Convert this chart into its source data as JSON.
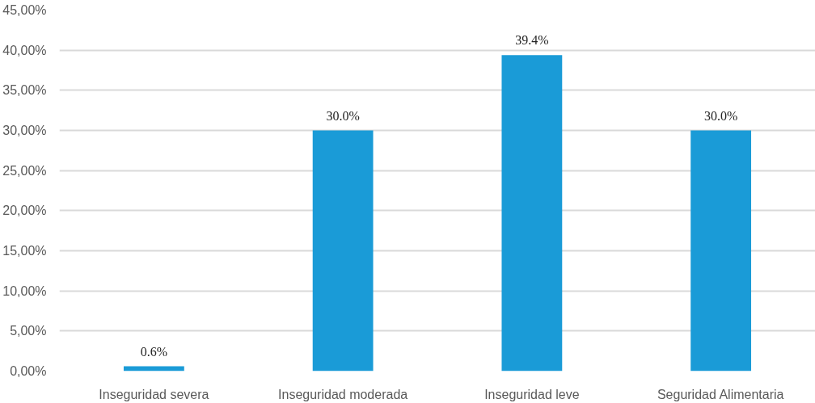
{
  "chart_data": {
    "type": "bar",
    "categories": [
      "Inseguridad severa",
      "Inseguridad moderada",
      "Inseguridad leve",
      "Seguridad Alimentaria"
    ],
    "values": [
      0.6,
      30.0,
      39.4,
      30.0
    ],
    "value_labels": [
      "0.6%",
      "30.0%",
      "39.4%",
      "30.0%"
    ],
    "color": "#1a9bd7",
    "ylim": [
      0,
      45
    ],
    "yticks": [
      {
        "value": 0,
        "label": "0,00%"
      },
      {
        "value": 5,
        "label": "5,00%"
      },
      {
        "value": 10,
        "label": "10,00%"
      },
      {
        "value": 15,
        "label": "15,00%"
      },
      {
        "value": 20,
        "label": "20,00%"
      },
      {
        "value": 25,
        "label": "25,00%"
      },
      {
        "value": 30,
        "label": "30,00%"
      },
      {
        "value": 35,
        "label": "35,00%"
      },
      {
        "value": 40,
        "label": "40,00%"
      },
      {
        "value": 45,
        "label": "45,00%"
      }
    ],
    "grid": "y"
  }
}
